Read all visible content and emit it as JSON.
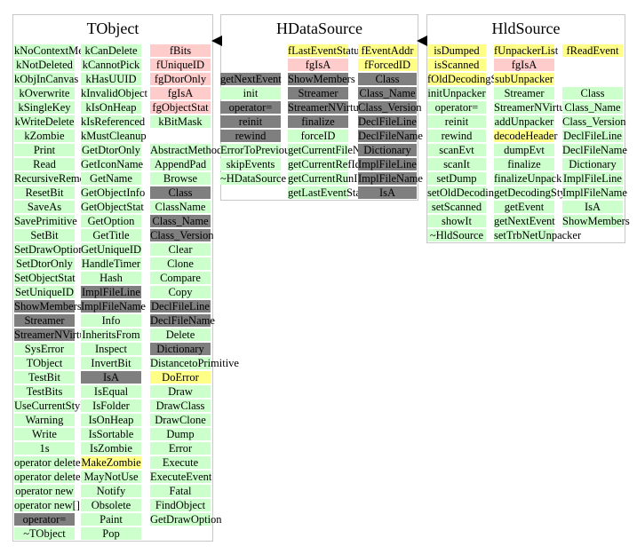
{
  "classes": [
    {
      "title": "TObject",
      "columns": [
        [
          {
            "t": "kNoContextMenu",
            "c": "g"
          },
          {
            "t": "kNotDeleted",
            "c": "g"
          },
          {
            "t": "kObjInCanvas",
            "c": "g"
          },
          {
            "t": "kOverwrite",
            "c": "g"
          },
          {
            "t": "kSingleKey",
            "c": "g"
          },
          {
            "t": "kWriteDelete",
            "c": "g"
          },
          {
            "t": "kZombie",
            "c": "g"
          },
          {
            "t": "Print",
            "c": "g"
          },
          {
            "t": "Read",
            "c": "g"
          },
          {
            "t": "RecursiveRemove",
            "c": "g"
          },
          {
            "t": "ResetBit",
            "c": "g"
          },
          {
            "t": "SaveAs",
            "c": "g"
          },
          {
            "t": "SavePrimitive",
            "c": "g"
          },
          {
            "t": "SetBit",
            "c": "g"
          },
          {
            "t": "SetDrawOption",
            "c": "g"
          },
          {
            "t": "SetDtorOnly",
            "c": "g"
          },
          {
            "t": "SetObjectStat",
            "c": "g"
          },
          {
            "t": "SetUniqueID",
            "c": "g"
          },
          {
            "t": "ShowMembers",
            "c": "d"
          },
          {
            "t": "Streamer",
            "c": "d"
          },
          {
            "t": "StreamerNVirtual",
            "c": "d"
          },
          {
            "t": "SysError",
            "c": "g"
          },
          {
            "t": "TObject",
            "c": "g"
          },
          {
            "t": "TestBit",
            "c": "g"
          },
          {
            "t": "TestBits",
            "c": "g"
          },
          {
            "t": "UseCurrentStyle",
            "c": "g"
          },
          {
            "t": "Warning",
            "c": "g"
          },
          {
            "t": "Write",
            "c": "g"
          },
          {
            "t": "1s",
            "c": "g"
          },
          {
            "t": "operator delete",
            "c": "g"
          },
          {
            "t": "operator delete[]",
            "c": "g"
          },
          {
            "t": "operator new",
            "c": "g"
          },
          {
            "t": "operator new[]",
            "c": "g"
          },
          {
            "t": "operator=",
            "c": "d"
          },
          {
            "t": "~TObject",
            "c": "g"
          }
        ],
        [
          {
            "t": "kCanDelete",
            "c": "g"
          },
          {
            "t": "kCannotPick",
            "c": "g"
          },
          {
            "t": "kHasUUID",
            "c": "g"
          },
          {
            "t": "kInvalidObject",
            "c": "g"
          },
          {
            "t": "kIsOnHeap",
            "c": "g"
          },
          {
            "t": "kIsReferenced",
            "c": "g"
          },
          {
            "t": "kMustCleanup",
            "c": "g"
          },
          {
            "t": "GetDtorOnly",
            "c": "g"
          },
          {
            "t": "GetIconName",
            "c": "g"
          },
          {
            "t": "GetName",
            "c": "g"
          },
          {
            "t": "GetObjectInfo",
            "c": "g"
          },
          {
            "t": "GetObjectStat",
            "c": "g"
          },
          {
            "t": "GetOption",
            "c": "g"
          },
          {
            "t": "GetTitle",
            "c": "g"
          },
          {
            "t": "GetUniqueID",
            "c": "g"
          },
          {
            "t": "HandleTimer",
            "c": "g"
          },
          {
            "t": "Hash",
            "c": "g"
          },
          {
            "t": "ImplFileLine",
            "c": "d"
          },
          {
            "t": "ImplFileName",
            "c": "d"
          },
          {
            "t": "Info",
            "c": "g"
          },
          {
            "t": "InheritsFrom",
            "c": "g"
          },
          {
            "t": "Inspect",
            "c": "g"
          },
          {
            "t": "InvertBit",
            "c": "g"
          },
          {
            "t": "IsA",
            "c": "d"
          },
          {
            "t": "IsEqual",
            "c": "g"
          },
          {
            "t": "IsFolder",
            "c": "g"
          },
          {
            "t": "IsOnHeap",
            "c": "g"
          },
          {
            "t": "IsSortable",
            "c": "g"
          },
          {
            "t": "IsZombie",
            "c": "g"
          },
          {
            "t": "MakeZombie",
            "c": "y"
          },
          {
            "t": "MayNotUse",
            "c": "g"
          },
          {
            "t": "Notify",
            "c": "g"
          },
          {
            "t": "Obsolete",
            "c": "g"
          },
          {
            "t": "Paint",
            "c": "g"
          },
          {
            "t": "Pop",
            "c": "g"
          }
        ],
        [
          {
            "t": "fBits",
            "c": "p"
          },
          {
            "t": "fUniqueID",
            "c": "p"
          },
          {
            "t": "fgDtorOnly",
            "c": "p"
          },
          {
            "t": "fgIsA",
            "c": "p"
          },
          {
            "t": "fgObjectStat",
            "c": "p"
          },
          {
            "t": "kBitMask",
            "c": "g"
          },
          {
            "t": "",
            "c": ""
          },
          {
            "t": "AbstractMethod",
            "c": "g"
          },
          {
            "t": "AppendPad",
            "c": "g"
          },
          {
            "t": "Browse",
            "c": "g"
          },
          {
            "t": "Class",
            "c": "d"
          },
          {
            "t": "ClassName",
            "c": "g"
          },
          {
            "t": "Class_Name",
            "c": "d"
          },
          {
            "t": "Class_Version",
            "c": "d"
          },
          {
            "t": "Clear",
            "c": "g"
          },
          {
            "t": "Clone",
            "c": "g"
          },
          {
            "t": "Compare",
            "c": "g"
          },
          {
            "t": "Copy",
            "c": "g"
          },
          {
            "t": "DeclFileLine",
            "c": "d"
          },
          {
            "t": "DeclFileName",
            "c": "d"
          },
          {
            "t": "Delete",
            "c": "g"
          },
          {
            "t": "Dictionary",
            "c": "d"
          },
          {
            "t": "DistancetoPrimitive",
            "c": "g"
          },
          {
            "t": "DoError",
            "c": "y"
          },
          {
            "t": "Draw",
            "c": "g"
          },
          {
            "t": "DrawClass",
            "c": "g"
          },
          {
            "t": "DrawClone",
            "c": "g"
          },
          {
            "t": "Dump",
            "c": "g"
          },
          {
            "t": "Error",
            "c": "g"
          },
          {
            "t": "Execute",
            "c": "g"
          },
          {
            "t": "ExecuteEvent",
            "c": "g"
          },
          {
            "t": "Fatal",
            "c": "g"
          },
          {
            "t": "FindObject",
            "c": "g"
          },
          {
            "t": "GetDrawOption",
            "c": "g"
          }
        ]
      ]
    },
    {
      "title": "HDataSource",
      "columns": [
        [
          {
            "t": "",
            "c": ""
          },
          {
            "t": "",
            "c": ""
          },
          {
            "t": "getNextEvent",
            "c": "d"
          },
          {
            "t": "init",
            "c": "g"
          },
          {
            "t": "operator=",
            "c": "d"
          },
          {
            "t": "reinit",
            "c": "d"
          },
          {
            "t": "rewind",
            "c": "d"
          },
          {
            "t": "ErrorToPreviousEvent",
            "c": "g"
          },
          {
            "t": "skipEvents",
            "c": "g"
          },
          {
            "t": "~HDataSource",
            "c": "g"
          }
        ],
        [
          {
            "t": "fLastEventStatus",
            "c": "y"
          },
          {
            "t": "fgIsA",
            "c": "p"
          },
          {
            "t": "ShowMembers",
            "c": "d"
          },
          {
            "t": "Streamer",
            "c": "d"
          },
          {
            "t": "StreamerNVirtual",
            "c": "d"
          },
          {
            "t": "finalize",
            "c": "d"
          },
          {
            "t": "forceID",
            "c": "g"
          },
          {
            "t": "getCurrentFileName",
            "c": "g"
          },
          {
            "t": "getCurrentRefId",
            "c": "g"
          },
          {
            "t": "getCurrentRunId",
            "c": "g"
          },
          {
            "t": "getLastEventStatus",
            "c": "g"
          }
        ],
        [
          {
            "t": "fEventAddr",
            "c": "y"
          },
          {
            "t": "fForcedID",
            "c": "y"
          },
          {
            "t": "Class",
            "c": "d"
          },
          {
            "t": "Class_Name",
            "c": "d"
          },
          {
            "t": "Class_Version",
            "c": "d"
          },
          {
            "t": "DeclFileLine",
            "c": "d"
          },
          {
            "t": "DeclFileName",
            "c": "d"
          },
          {
            "t": "Dictionary",
            "c": "d"
          },
          {
            "t": "ImplFileLine",
            "c": "d"
          },
          {
            "t": "ImplFileName",
            "c": "d"
          },
          {
            "t": "IsA",
            "c": "d"
          }
        ]
      ]
    },
    {
      "title": "HldSource",
      "columns": [
        [
          {
            "t": "isDumped",
            "c": "y"
          },
          {
            "t": "isScanned",
            "c": "y"
          },
          {
            "t": "fOldDecodingStyle",
            "c": "y"
          },
          {
            "t": "initUnpacker",
            "c": "g"
          },
          {
            "t": "operator=",
            "c": "g"
          },
          {
            "t": "reinit",
            "c": "g"
          },
          {
            "t": "rewind",
            "c": "g"
          },
          {
            "t": "scanEvt",
            "c": "g"
          },
          {
            "t": "scanIt",
            "c": "g"
          },
          {
            "t": "setDump",
            "c": "g"
          },
          {
            "t": "setOldDecodingStyle",
            "c": "g"
          },
          {
            "t": "setScanned",
            "c": "g"
          },
          {
            "t": "showIt",
            "c": "g"
          },
          {
            "t": "~HldSource",
            "c": "g"
          }
        ],
        [
          {
            "t": "fUnpackerList",
            "c": "y"
          },
          {
            "t": "fgIsA",
            "c": "p"
          },
          {
            "t": "subUnpacker",
            "c": "y"
          },
          {
            "t": "Streamer",
            "c": "g"
          },
          {
            "t": "StreamerNVirtual",
            "c": "g"
          },
          {
            "t": "addUnpacker",
            "c": "g"
          },
          {
            "t": "decodeHeader",
            "c": "y"
          },
          {
            "t": "dumpEvt",
            "c": "g"
          },
          {
            "t": "finalize",
            "c": "g"
          },
          {
            "t": "finalizeUnpackers",
            "c": "g"
          },
          {
            "t": "getDecodingStyle",
            "c": "g"
          },
          {
            "t": "getEvent",
            "c": "g"
          },
          {
            "t": "getNextEvent",
            "c": "g"
          },
          {
            "t": "setTrbNetUnpacker",
            "c": "g"
          }
        ],
        [
          {
            "t": "fReadEvent",
            "c": "y"
          },
          {
            "t": "",
            "c": ""
          },
          {
            "t": "",
            "c": ""
          },
          {
            "t": "Class",
            "c": "g"
          },
          {
            "t": "Class_Name",
            "c": "g"
          },
          {
            "t": "Class_Version",
            "c": "g"
          },
          {
            "t": "DeclFileLine",
            "c": "g"
          },
          {
            "t": "DeclFileName",
            "c": "g"
          },
          {
            "t": "Dictionary",
            "c": "g"
          },
          {
            "t": "ImplFileLine",
            "c": "g"
          },
          {
            "t": "ImplFileName",
            "c": "g"
          },
          {
            "t": "IsA",
            "c": "g"
          },
          {
            "t": "ShowMembers",
            "c": "g"
          }
        ]
      ]
    }
  ]
}
